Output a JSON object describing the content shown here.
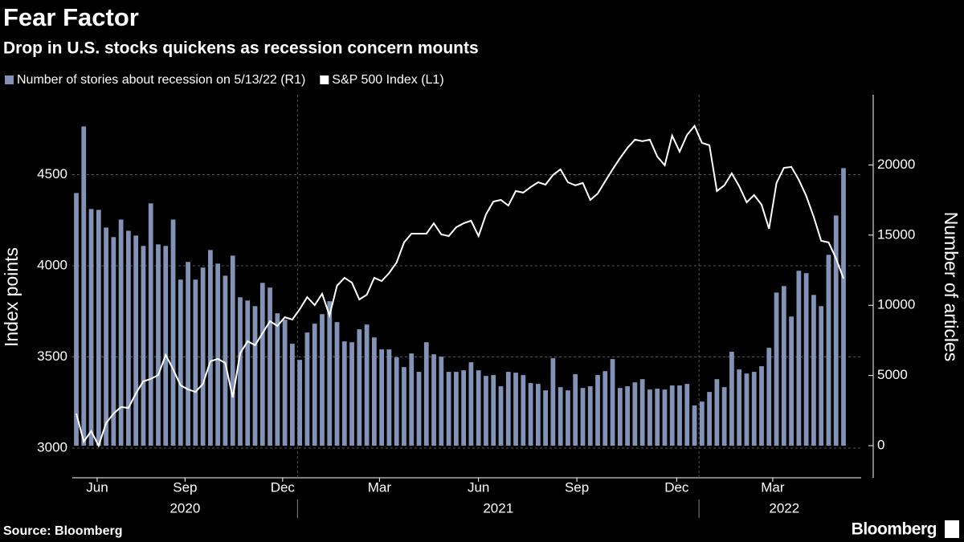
{
  "chart_data": {
    "type": "bar",
    "title": "Fear Factor",
    "subtitle": "Drop in U.S. stocks quickens as recession concern mounts",
    "y_label": "Index points",
    "y2_label": "Number of articles",
    "source": "Source: Bloomberg",
    "brand": "Bloomberg",
    "categories": [
      null,
      null,
      null,
      null,
      null,
      null,
      null,
      null,
      null,
      null,
      null,
      null,
      null,
      null,
      null,
      null,
      null,
      null,
      null,
      null,
      null,
      null,
      null,
      null,
      null,
      null,
      null,
      null,
      null,
      null,
      null,
      null,
      null,
      null,
      null,
      null,
      null,
      null,
      null,
      null,
      null,
      null,
      null,
      null,
      null,
      null,
      null,
      null,
      null,
      null,
      null,
      null,
      null,
      null,
      null,
      null,
      null,
      null,
      null,
      null,
      null,
      null,
      null,
      null,
      null,
      null,
      null,
      null,
      null,
      null,
      null,
      null,
      null,
      null,
      null,
      null,
      null,
      null,
      null,
      null,
      null,
      null,
      null,
      null,
      null,
      null,
      null,
      null,
      null,
      null,
      null,
      null,
      null,
      null,
      null,
      null,
      null,
      null,
      null,
      null,
      null,
      null,
      null,
      null
    ],
    "xticks": [
      {
        "value": 2.8,
        "label": "Jun"
      },
      {
        "value": 14.6,
        "label": "Sep"
      },
      {
        "value": 27.7,
        "label": "Dec"
      },
      {
        "value": 40.7,
        "label": "Mar"
      },
      {
        "value": 54,
        "label": "Jun"
      },
      {
        "value": 67.2,
        "label": "Sep"
      },
      {
        "value": 80.6,
        "label": "Dec"
      },
      {
        "value": 93.5,
        "label": "Mar"
      }
    ],
    "xgroups": [
      {
        "label": "2020",
        "start": -0.5,
        "end": 29.7
      },
      {
        "label": "2021",
        "start": 29.7,
        "end": 83.6
      },
      {
        "label": "2022",
        "start": 83.6,
        "end": 106.5
      }
    ],
    "ylim": [
      2837,
      4938
    ],
    "yticks": [
      3000,
      3500,
      4000,
      4500
    ],
    "y2lim": [
      -2286,
      25000
    ],
    "y2ticks": [
      0,
      5000,
      10000,
      15000,
      20000
    ],
    "grid": true,
    "series": [
      {
        "name": "Number of stories about recession on 5/13/22 (R1)",
        "type": "bar",
        "axis": "y2",
        "color": "#8393b8",
        "values": [
          18000,
          22740,
          16860,
          16800,
          15540,
          14860,
          16110,
          15310,
          14970,
          14230,
          17260,
          14340,
          14230,
          16110,
          11830,
          13090,
          11830,
          12690,
          13940,
          12970,
          12110,
          13540,
          10570,
          10340,
          9940,
          11600,
          11260,
          9430,
          8970,
          7260,
          6110,
          8060,
          8690,
          9370,
          10290,
          8800,
          7430,
          7370,
          8290,
          8630,
          7710,
          6860,
          6860,
          6290,
          5600,
          6570,
          5260,
          7370,
          6510,
          6340,
          5260,
          5260,
          5370,
          5940,
          5370,
          4970,
          5030,
          4230,
          5260,
          5200,
          5030,
          4460,
          4400,
          3940,
          6230,
          4170,
          3940,
          5090,
          4110,
          4230,
          5030,
          5310,
          6170,
          4110,
          4230,
          4510,
          4740,
          4000,
          4060,
          4000,
          4290,
          4290,
          4400,
          2860,
          3140,
          3830,
          4740,
          4170,
          6690,
          5430,
          5140,
          5260,
          5660,
          6970,
          10910,
          11370,
          9200,
          12460,
          12290,
          10740,
          9940,
          13600,
          16400,
          19770
        ]
      },
      {
        "name": "S&P 500 Index (L1)",
        "type": "line",
        "color": "#ffffff",
        "values": [
          3189,
          3035,
          3093,
          3013,
          3137,
          3189,
          3225,
          3220,
          3300,
          3366,
          3379,
          3401,
          3511,
          3432,
          3344,
          3322,
          3308,
          3352,
          3476,
          3489,
          3467,
          3278,
          3520,
          3586,
          3564,
          3630,
          3696,
          3670,
          3718,
          3705,
          3762,
          3828,
          3784,
          3846,
          3727,
          3890,
          3934,
          3907,
          3815,
          3841,
          3934,
          3916,
          3960,
          4018,
          4128,
          4176,
          4176,
          4176,
          4233,
          4172,
          4163,
          4211,
          4233,
          4247,
          4163,
          4282,
          4352,
          4361,
          4330,
          4410,
          4401,
          4432,
          4458,
          4445,
          4498,
          4529,
          4458,
          4441,
          4454,
          4361,
          4396,
          4463,
          4529,
          4590,
          4647,
          4692,
          4683,
          4692,
          4599,
          4551,
          4714,
          4626,
          4718,
          4767,
          4674,
          4661,
          4410,
          4441,
          4507,
          4436,
          4348,
          4388,
          4335,
          4203,
          4454,
          4537,
          4542,
          4471,
          4383,
          4269,
          4137,
          4128,
          4040,
          3930
        ]
      }
    ]
  }
}
